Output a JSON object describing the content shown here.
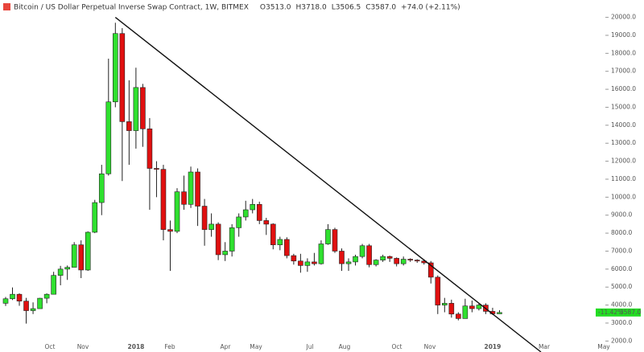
{
  "chart_data": {
    "type": "candlestick",
    "title": "Bitcoin / US Dollar Perpetual Inverse Swap Contract, 1W, BITMEX",
    "header_values": [
      {
        "value": 3513.0,
        "label": "O3513.0"
      },
      {
        "value": 3718.0,
        "label": "H3718.0"
      },
      {
        "value": 3506.5,
        "label": "L3506.5"
      },
      {
        "value": 3587.0,
        "label": "C3587.0"
      },
      {
        "value": 74.0,
        "label": "+74.0 (+2.11%)"
      }
    ],
    "categories": [
      null,
      null,
      null,
      null,
      null,
      null,
      null,
      null,
      null,
      null,
      null,
      null,
      null,
      null,
      null,
      null,
      null,
      null,
      null,
      null,
      null,
      null,
      null,
      null,
      null,
      null,
      null,
      null,
      null,
      null,
      null,
      null,
      null,
      null,
      null,
      null,
      null,
      null,
      null,
      null,
      null,
      null,
      null,
      null,
      null,
      null,
      null,
      null,
      null,
      null,
      null,
      null,
      null,
      null,
      null,
      null,
      null,
      null,
      null,
      null,
      null,
      null,
      null,
      null,
      null,
      null,
      null,
      null,
      null,
      null,
      null,
      null,
      null
    ],
    "open": [
      4100,
      4350,
      4600,
      4220,
      3690,
      3800,
      4380,
      4600,
      5650,
      6000,
      6100,
      7350,
      5950,
      8050,
      9700,
      11300,
      15300,
      19100,
      14200,
      13700,
      16100,
      13800,
      11600,
      11550,
      8200,
      8100,
      10300,
      9600,
      11400,
      9500,
      8200,
      8500,
      6800,
      7000,
      8300,
      8900,
      9300,
      9600,
      8700,
      8500,
      7350,
      7650,
      6750,
      6450,
      6200,
      6400,
      6300,
      7400,
      8200,
      7000,
      6300,
      6400,
      6700,
      7300,
      6250,
      6500,
      6700,
      6600,
      6300,
      6550,
      6500,
      6450,
      6350,
      5550,
      4000,
      4100,
      3500,
      3250,
      3950,
      3800,
      4000,
      3650,
      3513
    ],
    "high": [
      4450,
      4980,
      4650,
      4400,
      4150,
      4400,
      4650,
      5850,
      6180,
      6200,
      7500,
      7600,
      8100,
      9850,
      11800,
      17700,
      19700,
      19400,
      16500,
      17200,
      16300,
      14400,
      12000,
      11800,
      8700,
      10500,
      11200,
      11700,
      11600,
      9900,
      9100,
      8600,
      7500,
      8500,
      9100,
      9800,
      9900,
      9750,
      8850,
      8550,
      7800,
      7770,
      6850,
      6850,
      6600,
      6900,
      7600,
      8500,
      8300,
      7150,
      6600,
      6800,
      7400,
      7400,
      6550,
      6800,
      6750,
      6650,
      6700,
      6600,
      6550,
      6550,
      6450,
      5650,
      4400,
      4300,
      3600,
      4350,
      4250,
      4100,
      4100,
      3850,
      3718
    ],
    "low": [
      3950,
      4280,
      3960,
      2970,
      3500,
      3800,
      4100,
      4600,
      5100,
      5400,
      6100,
      5500,
      5900,
      8000,
      9000,
      11200,
      15000,
      10900,
      11800,
      12700,
      12800,
      9300,
      10000,
      7600,
      5900,
      8000,
      9300,
      9400,
      8400,
      7300,
      7800,
      6500,
      6450,
      6700,
      7800,
      8700,
      9100,
      8500,
      7900,
      7100,
      7050,
      6600,
      6250,
      5800,
      5850,
      6200,
      6250,
      7350,
      6900,
      5900,
      5900,
      6200,
      6600,
      6100,
      6150,
      6400,
      6400,
      6150,
      6200,
      6400,
      6350,
      6250,
      5200,
      3500,
      3600,
      3300,
      3150,
      3250,
      3600,
      3700,
      3500,
      3450,
      3506.5
    ],
    "close": [
      4350,
      4600,
      4220,
      3690,
      3800,
      4380,
      4600,
      5650,
      6000,
      6100,
      7350,
      5950,
      8050,
      9700,
      11300,
      15300,
      19100,
      14200,
      13700,
      16100,
      13800,
      11600,
      11550,
      8200,
      8100,
      10300,
      9600,
      11400,
      9500,
      8200,
      8500,
      6800,
      7000,
      8300,
      8900,
      9300,
      9600,
      8700,
      8500,
      7350,
      7650,
      6750,
      6450,
      6200,
      6400,
      6300,
      7400,
      8200,
      7000,
      6300,
      6400,
      6700,
      7300,
      6250,
      6500,
      6700,
      6600,
      6300,
      6550,
      6500,
      6450,
      6350,
      5550,
      4000,
      4100,
      3500,
      3250,
      3950,
      3800,
      4000,
      3650,
      3513,
      3587
    ],
    "up_color": "#2fe02f",
    "down_color": "#e01010",
    "outline_color": "#222222",
    "xlim": [
      -0.82,
      93.07
    ],
    "xticks": [
      {
        "value": 6.46,
        "label": "Oct"
      },
      {
        "value": 11.27,
        "label": "Nov"
      },
      {
        "value": 19.01,
        "label": "2018"
      },
      {
        "value": 23.94,
        "label": "Feb"
      },
      {
        "value": 32.04,
        "label": "Apr"
      },
      {
        "value": 36.5,
        "label": "May"
      },
      {
        "value": 44.37,
        "label": "Jul"
      },
      {
        "value": 49.41,
        "label": "Aug"
      },
      {
        "value": 57.04,
        "label": "Oct"
      },
      {
        "value": 61.85,
        "label": "Nov"
      },
      {
        "value": 71.0,
        "label": "2019"
      },
      {
        "value": 78.52,
        "label": "Mar"
      },
      {
        "value": 87.2,
        "label": "May"
      }
    ],
    "ylim": [
      1390,
      20965
    ],
    "yticks": [
      {
        "value": 2000,
        "label": "2000.0"
      },
      {
        "value": 3000,
        "label": "3000.0"
      },
      {
        "value": 4000,
        "label": "4000.0"
      },
      {
        "value": 5000,
        "label": "5000.0"
      },
      {
        "value": 6000,
        "label": "6000.0"
      },
      {
        "value": 7000,
        "label": "7000.0"
      },
      {
        "value": 8000,
        "label": "8000.0"
      },
      {
        "value": 9000,
        "label": "9000.0"
      },
      {
        "value": 10000,
        "label": "10000.0"
      },
      {
        "value": 11000,
        "label": "11000.0"
      },
      {
        "value": 12000,
        "label": "12000.0"
      },
      {
        "value": 13000,
        "label": "13000.0"
      },
      {
        "value": 14000,
        "label": "14000.0"
      },
      {
        "value": 15000,
        "label": "15000.0"
      },
      {
        "value": 16000,
        "label": "16000.0"
      },
      {
        "value": 17000,
        "label": "17000.0"
      },
      {
        "value": 18000,
        "label": "18000.0"
      },
      {
        "value": 19000,
        "label": "19000.0"
      },
      {
        "value": 20000,
        "label": "20000.0"
      }
    ],
    "grid": false,
    "trendline": {
      "x": [
        16,
        78.05
      ],
      "y": [
        20000,
        1390
      ],
      "color": "#111111"
    },
    "price_marker": {
      "value": 3587,
      "label": "3587.0",
      "change_label": "-11.42%",
      "color": "#22dd22"
    }
  }
}
